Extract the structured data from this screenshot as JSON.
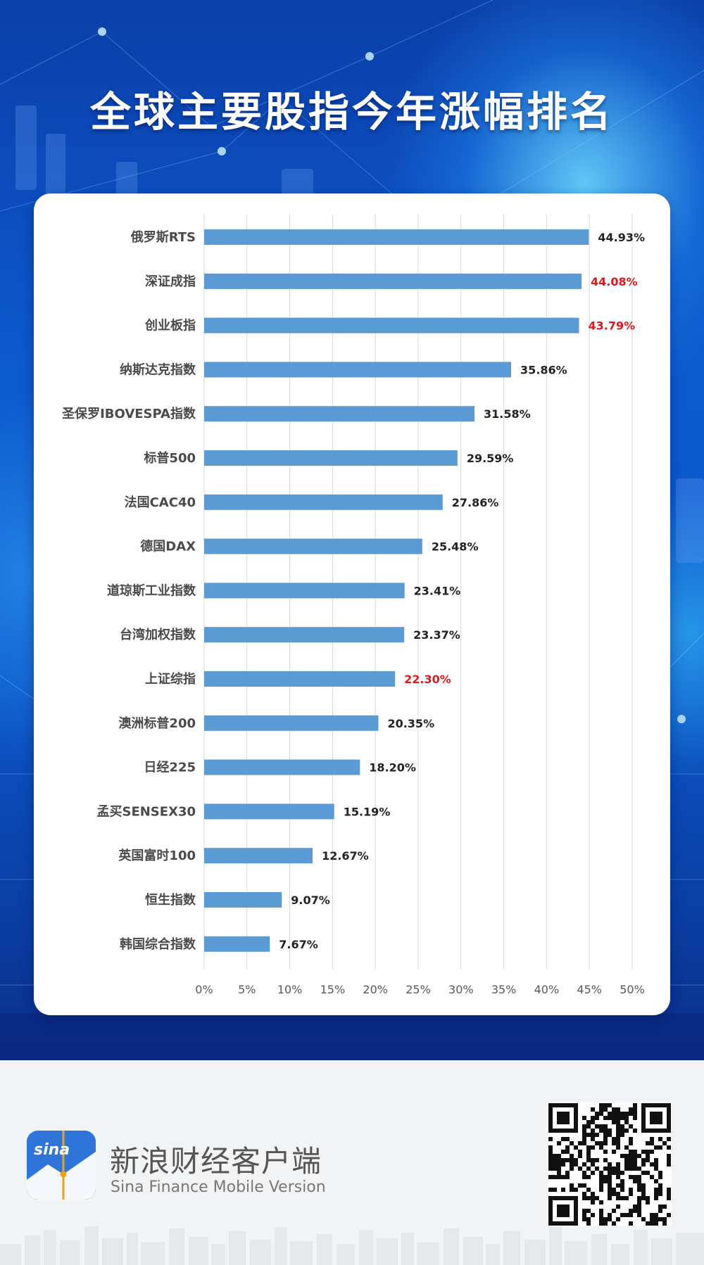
{
  "title": "全球主要股指今年涨幅排名",
  "chart_data": {
    "type": "bar",
    "orientation": "horizontal",
    "title": "",
    "xlabel": "",
    "ylabel": "",
    "xlim": [
      0,
      50
    ],
    "xticks": [
      "0%",
      "5%",
      "10%",
      "15%",
      "20%",
      "25%",
      "30%",
      "35%",
      "40%",
      "45%",
      "50%"
    ],
    "grid": true,
    "categories": [
      "俄罗斯RTS",
      "深证成指",
      "创业板指",
      "纳斯达克指数",
      "圣保罗IBOVESPA指数",
      "标普500",
      "法国CAC40",
      "德国DAX",
      "道琼斯工业指数",
      "台湾加权指数",
      "上证综指",
      "澳洲标普200",
      "日经225",
      "孟买SENSEX30",
      "英国富时100",
      "恒生指数",
      "韩国综合指数"
    ],
    "values": [
      44.93,
      44.08,
      43.79,
      35.86,
      31.58,
      29.59,
      27.86,
      25.48,
      23.41,
      23.37,
      22.3,
      20.35,
      18.2,
      15.19,
      12.67,
      9.07,
      7.67
    ],
    "labels": [
      "44.93%",
      "44.08%",
      "43.79%",
      "35.86%",
      "31.58%",
      "29.59%",
      "27.86%",
      "25.48%",
      "23.41%",
      "23.37%",
      "22.30%",
      "20.35%",
      "18.20%",
      "15.19%",
      "12.67%",
      "9.07%",
      "7.67%"
    ],
    "highlighted": [
      "深证成指",
      "创业板指",
      "上证综指"
    ],
    "bar_color": "#5b9bd5",
    "highlight_label_color": "#e0181e",
    "label_color": "#222222"
  },
  "footer": {
    "brand_cn": "新浪财经客户端",
    "brand_en": "Sina Finance Mobile Version",
    "logo_text": "sina"
  },
  "colors": {
    "background_top": "#0b55c8",
    "footer_bg": "#f2f3f5"
  }
}
